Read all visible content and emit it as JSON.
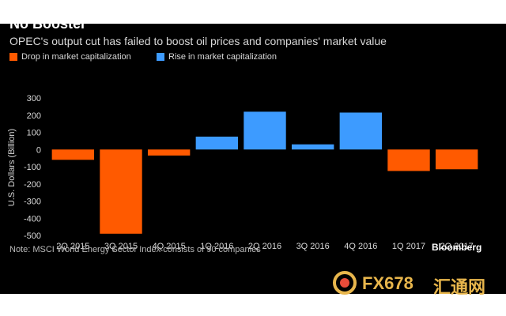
{
  "colors": {
    "drop": "#ff5a00",
    "rise": "#3d9bff",
    "background": "#000000"
  },
  "chart_data": {
    "type": "bar",
    "title": "No Booster",
    "subtitle": "OPEC's output cut has failed to boost oil prices and companies' market value",
    "ylabel": "U.S. Dollars (Billion)",
    "xlabel": "",
    "ylim": [
      -500,
      300
    ],
    "yticks": [
      300,
      200,
      100,
      0,
      -100,
      -200,
      -300,
      -400,
      -500
    ],
    "categories": [
      "2Q 2015",
      "3Q 2015",
      "4Q 2015",
      "1Q 2016",
      "2Q 2016",
      "3Q 2016",
      "4Q 2016",
      "1Q 2017",
      "2Q 2017"
    ],
    "values": [
      -60,
      -490,
      -35,
      75,
      220,
      30,
      215,
      -125,
      -115
    ],
    "series": [
      {
        "name": "Drop in market capitalization",
        "color": "#ff5a00"
      },
      {
        "name": "Rise in market capitalization",
        "color": "#3d9bff"
      }
    ],
    "legend_position": "top-left",
    "grid": false
  },
  "footer": {
    "note": "Note: MSCI World Energy Sector Index consists of 90 companies",
    "brand": "Bloomberg"
  },
  "watermark": {
    "text": "FX678",
    "cn": "汇通网"
  }
}
